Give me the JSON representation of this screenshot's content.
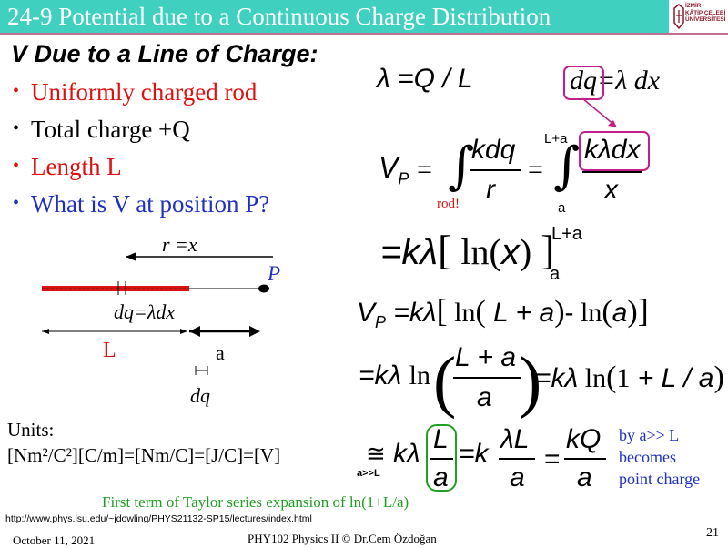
{
  "header": {
    "title": "24-9 Potential due to a Continuous Charge Distribution",
    "logo_lines": [
      "İZMİR",
      "KÂTİP ÇELEBİ",
      "ÜNİVERSİTESİ"
    ]
  },
  "colors": {
    "title_bar": "#3fd0c0",
    "red": "#e01010",
    "blue": "#2030c0",
    "magenta": "#c0208a",
    "green": "#20a020"
  },
  "subtitle": "V Due to a Line of Charge:",
  "bullets": [
    {
      "text": "Uniformly charged rod",
      "color": "red"
    },
    {
      "text": "Total charge +Q",
      "color": "black"
    },
    {
      "text": "Length L",
      "color": "red"
    },
    {
      "text": "What is V at position P?",
      "color": "blue"
    }
  ],
  "diagram": {
    "r_label": "r =x",
    "p_label": "P",
    "dq_label": "dq=λdx",
    "l_label": "L",
    "a_label": "a",
    "dq_small": "dq"
  },
  "units": {
    "label": "Units:",
    "line": "[Nm²/C²][C/m]=[Nm/C]=[J/C]=[V]"
  },
  "equations": {
    "lambda_def": "λ =Q / L",
    "dq_def": "dq=λ dx",
    "rod_label": "rod!",
    "upper_limit": "L+a",
    "lower_limit": "a",
    "by_note": [
      "by a>> L",
      "becomes",
      "point charge"
    ],
    "approx_cond": "a>>L"
  },
  "taylor_note": "First term of Taylor series expansion of ln(1+L/a)",
  "footer": {
    "url": "http://www.phys.lsu.edu/~jdowling/PHYS21132-SP15/lectures/index.html",
    "date": "October 11, 2021",
    "course": "PHY102 Physics II © Dr.Cem Özdoğan",
    "page": "21"
  }
}
